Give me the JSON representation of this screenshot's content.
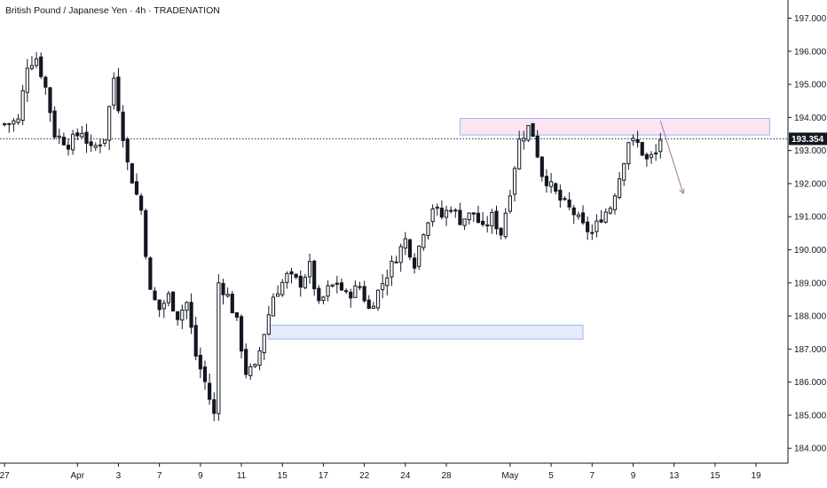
{
  "header": {
    "title": "British Pound / Japanese Yen · 4h · TRADENATION"
  },
  "price_tag": {
    "value": "193.354"
  },
  "colors": {
    "candle": "#131722",
    "resistance_fill": "#fce4f3",
    "resistance_stroke": "#9fb8ec",
    "support_fill": "#e3ebfc",
    "support_stroke": "#9fb8ec",
    "arrow": "#9c7a93",
    "price_tag_bg": "#131722",
    "price_line": "#131722"
  },
  "chart_data": {
    "type": "candlestick",
    "title": "British Pound / Japanese Yen · 4h · TRADENATION",
    "ylim": [
      183.55,
      197.55
    ],
    "y_ticks": [
      "197.000",
      "196.000",
      "195.000",
      "194.000",
      "193.000",
      "192.000",
      "191.000",
      "190.000",
      "189.000",
      "188.000",
      "187.000",
      "186.000",
      "185.000",
      "184.000"
    ],
    "y_tick_values": [
      197,
      196,
      195,
      194,
      193,
      192,
      191,
      190,
      189,
      188,
      187,
      186,
      185,
      184
    ],
    "xlim": [
      -1,
      172
    ],
    "x_ticks": [
      {
        "label": "27",
        "i": 0
      },
      {
        "label": "Apr",
        "i": 16
      },
      {
        "label": "3",
        "i": 25
      },
      {
        "label": "7",
        "i": 34
      },
      {
        "label": "9",
        "i": 43
      },
      {
        "label": "11",
        "i": 52
      },
      {
        "label": "15",
        "i": 61
      },
      {
        "label": "17",
        "i": 70
      },
      {
        "label": "22",
        "i": 79
      },
      {
        "label": "24",
        "i": 88
      },
      {
        "label": "28",
        "i": 97
      },
      {
        "label": "May",
        "i": 111
      },
      {
        "label": "5",
        "i": 120
      },
      {
        "label": "7",
        "i": 129
      },
      {
        "label": "9",
        "i": 138
      },
      {
        "label": "13",
        "i": 147
      },
      {
        "label": "15",
        "i": 156
      },
      {
        "label": "19",
        "i": 165
      }
    ],
    "last_price": 193.354,
    "zones": [
      {
        "kind": "resistance",
        "i_start": 100,
        "i_end": 168,
        "low": 193.47,
        "high": 193.97
      },
      {
        "kind": "support",
        "i_start": 58,
        "i_end": 127,
        "low": 187.3,
        "high": 187.72
      }
    ],
    "projection_arrow": {
      "i_start": 144,
      "price_start": 193.9,
      "i_end": 149,
      "price_end": 191.7
    },
    "key_points": [
      {
        "i": 0,
        "p": 193.8
      },
      {
        "i": 3,
        "p": 193.9
      },
      {
        "i": 5,
        "p": 195.6
      },
      {
        "i": 7,
        "p": 195.8
      },
      {
        "i": 9,
        "p": 194.9
      },
      {
        "i": 11,
        "p": 193.5
      },
      {
        "i": 14,
        "p": 193.2
      },
      {
        "i": 17,
        "p": 193.6
      },
      {
        "i": 19,
        "p": 193.0
      },
      {
        "i": 22,
        "p": 193.4
      },
      {
        "i": 24,
        "p": 195.2
      },
      {
        "i": 27,
        "p": 192.6
      },
      {
        "i": 30,
        "p": 191.2
      },
      {
        "i": 32,
        "p": 188.7
      },
      {
        "i": 34,
        "p": 188.2
      },
      {
        "i": 36,
        "p": 188.6
      },
      {
        "i": 38,
        "p": 188.0
      },
      {
        "i": 40,
        "p": 188.4
      },
      {
        "i": 42,
        "p": 186.8
      },
      {
        "i": 44,
        "p": 186.0
      },
      {
        "i": 46,
        "p": 185.0
      },
      {
        "i": 47,
        "p": 189.0
      },
      {
        "i": 49,
        "p": 188.6
      },
      {
        "i": 51,
        "p": 187.8
      },
      {
        "i": 53,
        "p": 186.3
      },
      {
        "i": 55,
        "p": 186.4
      },
      {
        "i": 57,
        "p": 187.5
      },
      {
        "i": 59,
        "p": 188.6
      },
      {
        "i": 62,
        "p": 189.2
      },
      {
        "i": 65,
        "p": 189.0
      },
      {
        "i": 67,
        "p": 189.5
      },
      {
        "i": 69,
        "p": 188.3
      },
      {
        "i": 71,
        "p": 188.8
      },
      {
        "i": 73,
        "p": 189.0
      },
      {
        "i": 75,
        "p": 188.6
      },
      {
        "i": 78,
        "p": 188.9
      },
      {
        "i": 80,
        "p": 188.2
      },
      {
        "i": 83,
        "p": 189.0
      },
      {
        "i": 86,
        "p": 189.8
      },
      {
        "i": 88,
        "p": 190.3
      },
      {
        "i": 90,
        "p": 189.6
      },
      {
        "i": 92,
        "p": 190.6
      },
      {
        "i": 94,
        "p": 191.3
      },
      {
        "i": 96,
        "p": 191.0
      },
      {
        "i": 98,
        "p": 191.3
      },
      {
        "i": 100,
        "p": 190.9
      },
      {
        "i": 103,
        "p": 191.1
      },
      {
        "i": 105,
        "p": 190.6
      },
      {
        "i": 107,
        "p": 191.0
      },
      {
        "i": 109,
        "p": 190.5
      },
      {
        "i": 111,
        "p": 191.8
      },
      {
        "i": 113,
        "p": 193.3
      },
      {
        "i": 115,
        "p": 193.7
      },
      {
        "i": 116,
        "p": 193.5
      },
      {
        "i": 118,
        "p": 192.3
      },
      {
        "i": 120,
        "p": 191.9
      },
      {
        "i": 122,
        "p": 191.5
      },
      {
        "i": 125,
        "p": 191.1
      },
      {
        "i": 127,
        "p": 190.7
      },
      {
        "i": 129,
        "p": 190.5
      },
      {
        "i": 131,
        "p": 191.0
      },
      {
        "i": 133,
        "p": 191.3
      },
      {
        "i": 135,
        "p": 192.2
      },
      {
        "i": 137,
        "p": 193.3
      },
      {
        "i": 139,
        "p": 193.2
      },
      {
        "i": 141,
        "p": 192.7
      },
      {
        "i": 143,
        "p": 192.9
      },
      {
        "i": 144,
        "p": 193.35
      }
    ]
  }
}
